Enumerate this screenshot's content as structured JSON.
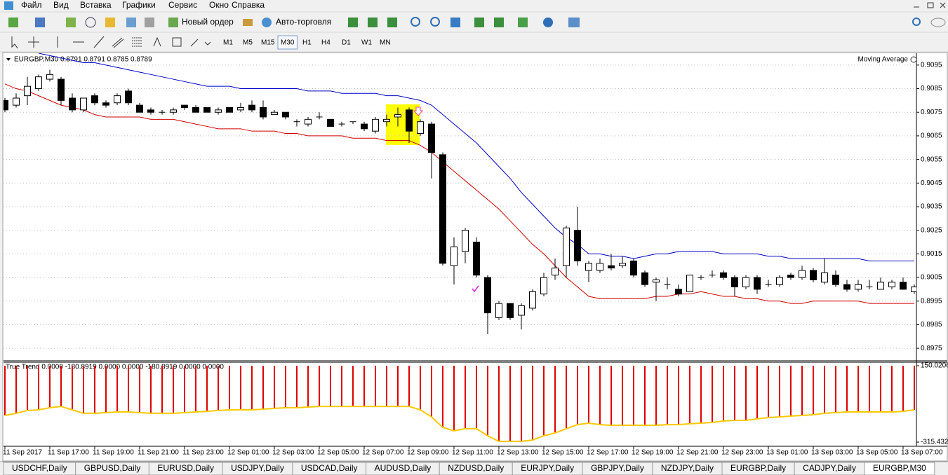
{
  "menu": [
    "Файл",
    "Вид",
    "Вставка",
    "Графики",
    "Сервис",
    "Окно",
    "Справка"
  ],
  "toolbar": {
    "new_order": "Новый ордер",
    "auto_trading": "Авто-торговля",
    "timeframes": [
      "M1",
      "M5",
      "M15",
      "M30",
      "H1",
      "H4",
      "D1",
      "W1",
      "MN"
    ],
    "active_timeframe": 3
  },
  "tabs": {
    "items": [
      "USDCHF,Daily",
      "GBPUSD,Daily",
      "EURUSD,Daily",
      "USDJPY,Daily",
      "USDCAD,Daily",
      "AUDUSD,Daily",
      "NZDUSD,Daily",
      "EURJPY,Daily",
      "GBPJPY,Daily",
      "NZDJPY,Daily",
      "EURGBP,Daily",
      "CADJPY,Daily",
      "EURGBP,M30"
    ],
    "active": 12
  },
  "chart_data": [
    {
      "type": "candlestick",
      "title": "EURGBP,M30  0.8791 0.8791 0.8785 0.8789",
      "legend": "Moving Average",
      "categories": [
        "11 Sep 2017",
        null,
        null,
        null,
        "11 Sep 17:00",
        null,
        null,
        null,
        "11 Sep 19:00",
        null,
        null,
        null,
        "11 Sep 21:00",
        null,
        null,
        null,
        "11 Sep 23:00",
        null,
        null,
        null,
        "12 Sep 01:00",
        null,
        null,
        null,
        "12 Sep 03:00",
        null,
        null,
        null,
        "12 Sep 05:00",
        null,
        null,
        null,
        "12 Sep 07:00",
        null,
        null,
        null,
        "12 Sep 09:00",
        null,
        null,
        null,
        "12 Sep 11:00",
        null,
        null,
        null,
        "12 Sep 13:00",
        null,
        null,
        null,
        "12 Sep 15:00",
        null,
        null,
        null,
        "12 Sep 17:00",
        null,
        null,
        null,
        "12 Sep 19:00",
        null,
        null,
        null,
        "12 Sep 21:00",
        null,
        null,
        null,
        "12 Sep 23:00",
        null,
        null,
        null,
        "13 Sep 01:00",
        null,
        null,
        null,
        "13 Sep 03:00",
        null,
        null,
        null,
        "13 Sep 05:00",
        null,
        null,
        null,
        "13 Sep 07:00",
        null
      ],
      "open": [
        0.908,
        0.9078,
        0.9082,
        0.9085,
        0.9089,
        0.9089,
        0.9081,
        0.9076,
        0.9082,
        0.9079,
        0.9079,
        0.9084,
        0.9078,
        0.9076,
        0.9075,
        0.9075,
        0.9078,
        0.9077,
        0.9077,
        0.9075,
        0.9077,
        0.9076,
        0.9078,
        0.9077,
        0.9074,
        0.9075,
        0.9071,
        0.907,
        0.9073,
        0.9072,
        0.907,
        0.9071,
        0.907,
        0.9067,
        0.9071,
        0.9073,
        0.9076,
        0.9066,
        0.907,
        0.9057,
        0.901,
        0.9016,
        0.902,
        0.9005,
        0.8988,
        0.8994,
        0.8989,
        0.8992,
        0.8998,
        0.9006,
        0.901,
        0.9025,
        0.9008,
        0.9008,
        0.901,
        0.901,
        0.9012,
        0.9007,
        0.9003,
        0.9002,
        0.9,
        0.8999,
        0.9005,
        0.9006,
        0.9007,
        0.9005,
        0.9001,
        0.9005,
        0.9002,
        0.9002,
        0.9006,
        0.9005,
        0.9008,
        0.9003,
        0.9006,
        0.9002,
        0.9,
        0.9001,
        0.9,
        0.9001,
        0.9003,
        0.8999
      ],
      "high": [
        0.9081,
        0.9083,
        0.909,
        0.9091,
        0.9093,
        0.909,
        0.9083,
        0.9081,
        0.9083,
        0.908,
        0.9083,
        0.9085,
        0.9079,
        0.9077,
        0.9076,
        0.9077,
        0.9078,
        0.9078,
        0.9077,
        0.9077,
        0.9077,
        0.9079,
        0.908,
        0.908,
        0.9076,
        0.9075,
        0.9072,
        0.9073,
        0.9075,
        0.9072,
        0.9071,
        0.9071,
        0.9071,
        0.9073,
        0.9074,
        0.9077,
        0.9077,
        0.9072,
        0.9071,
        0.9058,
        0.9022,
        0.9026,
        0.9022,
        0.9006,
        0.8995,
        0.8994,
        0.8994,
        0.9,
        0.9007,
        0.9013,
        0.9027,
        0.9035,
        0.9012,
        0.9013,
        0.9015,
        0.9014,
        0.9013,
        0.9008,
        0.9005,
        0.9005,
        0.9002,
        0.9006,
        0.9006,
        0.9008,
        0.9008,
        0.9006,
        0.9006,
        0.9006,
        0.9004,
        0.9006,
        0.9007,
        0.901,
        0.9009,
        0.9013,
        0.9008,
        0.9004,
        0.9004,
        0.9004,
        0.9005,
        0.9004,
        0.9005,
        0.9002
      ],
      "low": [
        0.9075,
        0.9077,
        0.9078,
        0.9084,
        0.9088,
        0.9078,
        0.9075,
        0.9075,
        0.9078,
        0.9077,
        0.9078,
        0.9078,
        0.9075,
        0.9074,
        0.9074,
        0.9074,
        0.9076,
        0.9075,
        0.9075,
        0.9074,
        0.9075,
        0.9075,
        0.9075,
        0.9072,
        0.9074,
        0.9072,
        0.9069,
        0.9069,
        0.9072,
        0.9069,
        0.9069,
        0.907,
        0.9067,
        0.9066,
        0.9069,
        0.9069,
        0.9062,
        0.9065,
        0.9047,
        0.901,
        0.9002,
        0.9011,
        0.9005,
        0.8981,
        0.8987,
        0.8987,
        0.8983,
        0.8991,
        0.8997,
        0.9004,
        0.9005,
        0.901,
        0.9003,
        0.9007,
        0.9008,
        0.9009,
        0.9005,
        0.9001,
        0.8995,
        0.9,
        0.8997,
        0.8999,
        0.9004,
        0.9005,
        0.9004,
        0.8997,
        0.9,
        0.8998,
        0.9001,
        0.9001,
        0.9004,
        0.9004,
        0.9003,
        0.9002,
        0.9001,
        0.8999,
        0.8999,
        0.9,
        0.9,
        0.9,
        0.9,
        0.8998
      ],
      "close": [
        0.9076,
        0.9081,
        0.9086,
        0.909,
        0.9091,
        0.908,
        0.9076,
        0.9081,
        0.9079,
        0.9078,
        0.9082,
        0.9079,
        0.9075,
        0.9075,
        0.9075,
        0.9076,
        0.9077,
        0.9075,
        0.9075,
        0.9076,
        0.9075,
        0.9077,
        0.9076,
        0.9073,
        0.9075,
        0.9073,
        0.9071,
        0.9072,
        0.9073,
        0.9069,
        0.907,
        0.9071,
        0.9068,
        0.9072,
        0.9072,
        0.9074,
        0.9067,
        0.9071,
        0.9058,
        0.9011,
        0.9018,
        0.9025,
        0.9006,
        0.899,
        0.8994,
        0.8988,
        0.8993,
        0.8999,
        0.9005,
        0.9009,
        0.9026,
        0.9012,
        0.9011,
        0.9011,
        0.9009,
        0.9011,
        0.9006,
        0.9002,
        0.9004,
        0.9002,
        0.8998,
        0.9006,
        0.9005,
        0.9006,
        0.9005,
        0.9001,
        0.9005,
        0.9,
        0.9002,
        0.9005,
        0.9005,
        0.9008,
        0.9004,
        0.9007,
        0.9002,
        0.9,
        0.9002,
        0.9001,
        0.9003,
        0.9003,
        0.9,
        0.9001
      ],
      "up_color": "#ffffff",
      "down_color": "#000000",
      "lines": [
        {
          "color": "#0000c8",
          "values": [
            null,
            null,
            null,
            0.91,
            0.9099,
            0.9098,
            0.9097,
            0.9096,
            0.9096,
            0.9095,
            0.9094,
            0.9093,
            0.9092,
            0.9091,
            0.909,
            0.9089,
            0.9088,
            0.9087,
            0.9086,
            0.9086,
            0.9086,
            0.9085,
            0.9085,
            0.9085,
            0.9085,
            0.9085,
            0.9085,
            0.9084,
            0.9084,
            0.9084,
            0.9083,
            0.9083,
            0.9083,
            0.9083,
            0.9082,
            0.9082,
            0.9081,
            0.908,
            0.9078,
            0.9074,
            0.907,
            0.9066,
            0.9062,
            0.9057,
            0.9052,
            0.9047,
            0.9041,
            0.9036,
            0.9031,
            0.9026,
            0.9022,
            0.9019,
            0.9015,
            0.9015,
            0.9014,
            0.9014,
            0.9013,
            0.9014,
            0.9015,
            0.9015,
            0.9016,
            0.9016,
            0.9016,
            0.9016,
            0.9015,
            0.9015,
            0.9015,
            0.9015,
            0.9014,
            0.9014,
            0.9013,
            0.9013,
            0.9013,
            0.9013,
            0.9013,
            0.9013,
            0.9013,
            0.9012,
            0.9012,
            0.9012,
            0.9012,
            0.9012
          ]
        },
        {
          "color": "#d00000",
          "values": [
            0.9087,
            0.9085,
            0.9084,
            0.9082,
            0.908,
            0.9078,
            0.9077,
            0.9076,
            0.9074,
            0.9073,
            0.9073,
            0.9073,
            0.9073,
            0.9072,
            0.9072,
            0.9072,
            0.9071,
            0.907,
            0.9069,
            0.9068,
            0.9068,
            0.9068,
            0.9067,
            0.9067,
            0.9067,
            0.9066,
            0.9066,
            0.9065,
            0.9065,
            0.9065,
            0.9065,
            0.9064,
            0.9064,
            0.9064,
            0.9063,
            0.9063,
            0.9063,
            0.9061,
            0.9058,
            0.9054,
            0.905,
            0.9046,
            0.9042,
            0.9038,
            0.9034,
            0.9029,
            0.9024,
            0.9019,
            0.9015,
            0.901,
            0.9005,
            0.9001,
            0.8997,
            0.8996,
            0.8996,
            0.8996,
            0.8996,
            0.8996,
            0.8997,
            0.8997,
            0.8998,
            0.8998,
            0.8999,
            0.8998,
            0.8997,
            0.8997,
            0.8996,
            0.8996,
            0.8995,
            0.8995,
            0.8994,
            0.8994,
            0.8995,
            0.8995,
            0.8995,
            0.8995,
            0.8995,
            0.8994,
            0.8994,
            0.8994,
            0.8994,
            0.8994
          ]
        }
      ],
      "ylim": [
        0.897,
        0.91
      ],
      "yticks": [
        0.9095,
        0.9085,
        0.9075,
        0.9065,
        0.9055,
        0.9045,
        0.9035,
        0.9025,
        0.9015,
        0.9005,
        0.8995,
        0.8985,
        0.8975
      ],
      "grid": true
    },
    {
      "type": "bar",
      "title": "True Trend 0.0000 -180.8919 0.0000 0.0000 -180.8919 0.0000 0.0000",
      "color": "#e00000",
      "line_color": "#ffc800",
      "values": [
        -153,
        -140,
        -123,
        -119,
        -106,
        -98,
        -119,
        -140,
        -140,
        -136,
        -132,
        -132,
        -136,
        -140,
        -140,
        -140,
        -136,
        -132,
        -128,
        -123,
        -119,
        -119,
        -119,
        -115,
        -110,
        -106,
        -106,
        -102,
        -98,
        -98,
        -98,
        -98,
        -98,
        -98,
        -98,
        -98,
        -98,
        -119,
        -162,
        -226,
        -247,
        -234,
        -234,
        -277,
        -311,
        -311,
        -311,
        -303,
        -277,
        -260,
        -234,
        -209,
        -200,
        -209,
        -213,
        -213,
        -213,
        -213,
        -213,
        -209,
        -209,
        -204,
        -200,
        -196,
        -187,
        -183,
        -183,
        -174,
        -166,
        -162,
        -157,
        -153,
        -149,
        -140,
        -136,
        -132,
        -132,
        -132,
        -132,
        -132,
        -128,
        -119
      ],
      "ylim": [
        -315.432,
        150.0206
      ],
      "yticks": [
        150.0206,
        -315.432
      ]
    }
  ]
}
